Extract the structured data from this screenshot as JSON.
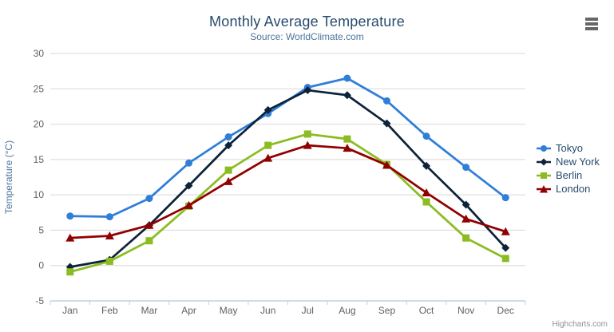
{
  "chart_data": {
    "type": "line",
    "title": "Monthly Average Temperature",
    "subtitle": "Source: WorldClimate.com",
    "categories": [
      "Jan",
      "Feb",
      "Mar",
      "Apr",
      "May",
      "Jun",
      "Jul",
      "Aug",
      "Sep",
      "Oct",
      "Nov",
      "Dec"
    ],
    "xlabel": "",
    "ylabel": "Temperature (°C)",
    "ylim": [
      -5,
      30
    ],
    "yticks": [
      -5,
      0,
      5,
      10,
      15,
      20,
      25,
      30
    ],
    "grid": true,
    "legend_position": "right",
    "series": [
      {
        "name": "Tokyo",
        "color": "#2f7ed8",
        "marker": "circle",
        "values": [
          7.0,
          6.9,
          9.5,
          14.5,
          18.2,
          21.5,
          25.2,
          26.5,
          23.3,
          18.3,
          13.9,
          9.6
        ]
      },
      {
        "name": "New York",
        "color": "#0d233a",
        "marker": "diamond",
        "values": [
          -0.2,
          0.8,
          5.7,
          11.3,
          17.0,
          22.0,
          24.8,
          24.1,
          20.1,
          14.1,
          8.6,
          2.5
        ]
      },
      {
        "name": "Berlin",
        "color": "#8bbc21",
        "marker": "square",
        "values": [
          -0.9,
          0.6,
          3.5,
          8.4,
          13.5,
          17.0,
          18.6,
          17.9,
          14.3,
          9.0,
          3.9,
          1.0
        ]
      },
      {
        "name": "London",
        "color": "#910000",
        "marker": "triangle",
        "values": [
          3.9,
          4.2,
          5.7,
          8.5,
          11.9,
          15.2,
          17.0,
          16.6,
          14.2,
          10.3,
          6.6,
          4.8
        ]
      }
    ]
  },
  "credits": {
    "label": "Highcharts.com"
  },
  "colors": {
    "background": "#ffffff",
    "title": "#274b6d",
    "subtitle": "#4d759e",
    "axis_title": "#4d759e",
    "axis_label": "#606060",
    "axis_line": "#c0d0e0",
    "gridline": "#d8d8d8",
    "legend_text": "#274b6d",
    "credits": "#909090",
    "menu_icon": "#666666"
  }
}
